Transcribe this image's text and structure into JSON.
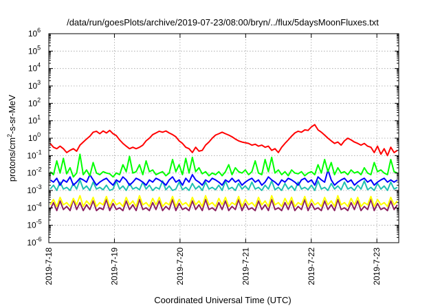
{
  "chart_data": {
    "type": "line",
    "title": "/data/run/goesPlots/archive/2019-07-23/08:00/bryn/../flux/5daysMoonFluxes.txt",
    "xlabel": "Coordinated Universal Time (UTC)",
    "ylabel_parts": [
      "protons/cm",
      "2",
      "-s-sr-MeV"
    ],
    "y_scale": "log",
    "ylim": [
      1e-06,
      1000000
    ],
    "y_ticks": [
      {
        "base": "10",
        "exp": "-6"
      },
      {
        "base": "10",
        "exp": "-5"
      },
      {
        "base": "10",
        "exp": "-4"
      },
      {
        "base": "10",
        "exp": "-3"
      },
      {
        "base": "10",
        "exp": "-2"
      },
      {
        "base": "10",
        "exp": "-1"
      },
      {
        "base": "10",
        "exp": "0"
      },
      {
        "base": "10",
        "exp": "1"
      },
      {
        "base": "10",
        "exp": "2"
      },
      {
        "base": "10",
        "exp": "3"
      },
      {
        "base": "10",
        "exp": "4"
      },
      {
        "base": "10",
        "exp": "5"
      },
      {
        "base": "10",
        "exp": "6"
      }
    ],
    "xlim": [
      "2019-07-18 00:00",
      "2019-07-23 08:00"
    ],
    "x_ticks": [
      "2019-7-18",
      "2019-7-19",
      "2019-7-20",
      "2019-7-21",
      "2019-7-22",
      "2019-7-23"
    ],
    "grid": true,
    "series": [
      {
        "color": "#ff0000",
        "values": [
          0.5,
          0.3,
          0.25,
          0.35,
          0.25,
          0.15,
          0.2,
          0.25,
          0.18,
          0.4,
          0.6,
          0.9,
          1.3,
          2.2,
          2.5,
          1.8,
          2.6,
          2.0,
          2.8,
          1.8,
          1.4,
          0.8,
          0.5,
          0.35,
          0.25,
          0.3,
          0.25,
          0.3,
          0.4,
          0.7,
          1.0,
          1.6,
          2.0,
          2.5,
          2.2,
          2.6,
          2.0,
          1.6,
          1.2,
          0.7,
          0.5,
          0.3,
          0.25,
          0.15,
          0.3,
          0.18,
          0.2,
          0.4,
          0.6,
          1.0,
          1.5,
          1.8,
          2.2,
          1.8,
          1.5,
          1.2,
          0.9,
          0.7,
          0.6,
          0.55,
          0.5,
          0.4,
          0.45,
          0.35,
          0.4,
          0.3,
          0.35,
          0.2,
          0.25,
          0.15,
          0.3,
          0.5,
          0.8,
          1.3,
          2.0,
          2.5,
          2.2,
          3.0,
          2.8,
          4.5,
          6.0,
          3.0,
          2.2,
          1.5,
          1.0,
          0.7,
          0.5,
          0.6,
          0.4,
          0.7,
          1.0,
          0.8,
          0.6,
          0.5,
          0.4,
          0.5,
          0.35,
          0.3,
          0.15,
          0.35,
          0.12,
          0.25,
          0.1,
          0.3,
          0.15,
          0.2
        ]
      },
      {
        "color": "#00ff00",
        "values": [
          0.012,
          0.008,
          0.05,
          0.01,
          0.07,
          0.009,
          0.02,
          0.006,
          0.01,
          0.12,
          0.008,
          0.015,
          0.007,
          0.04,
          0.01,
          0.008,
          0.012,
          0.01,
          0.009,
          0.006,
          0.01,
          0.008,
          0.03,
          0.012,
          0.09,
          0.01,
          0.012,
          0.03,
          0.008,
          0.05,
          0.012,
          0.015,
          0.008,
          0.01,
          0.012,
          0.007,
          0.01,
          0.06,
          0.012,
          0.03,
          0.008,
          0.07,
          0.01,
          0.08,
          0.012,
          0.02,
          0.009,
          0.012,
          0.007,
          0.01,
          0.008,
          0.012,
          0.007,
          0.012,
          0.03,
          0.008,
          0.02,
          0.012,
          0.01,
          0.015,
          0.008,
          0.012,
          0.05,
          0.01,
          0.008,
          0.06,
          0.012,
          0.08,
          0.01,
          0.015,
          0.008,
          0.012,
          0.007,
          0.015,
          0.01,
          0.009,
          0.012,
          0.007,
          0.01,
          0.012,
          0.008,
          0.03,
          0.01,
          0.06,
          0.012,
          0.04,
          0.008,
          0.02,
          0.01,
          0.012,
          0.008,
          0.015,
          0.01,
          0.012,
          0.008,
          0.02,
          0.01,
          0.008,
          0.04,
          0.012,
          0.015,
          0.01,
          0.008,
          0.06,
          0.012,
          0.01
        ]
      },
      {
        "color": "#0000ff",
        "values": [
          0.004,
          0.003,
          0.005,
          0.002,
          0.004,
          0.003,
          0.006,
          0.002,
          0.003,
          0.005,
          0.004,
          0.003,
          0.008,
          0.004,
          0.002,
          0.003,
          0.004,
          0.005,
          0.003,
          0.002,
          0.004,
          0.003,
          0.006,
          0.004,
          0.002,
          0.003,
          0.005,
          0.004,
          0.003,
          0.002,
          0.004,
          0.003,
          0.005,
          0.004,
          0.003,
          0.002,
          0.004,
          0.006,
          0.003,
          0.004,
          0.002,
          0.005,
          0.003,
          0.008,
          0.004,
          0.003,
          0.002,
          0.004,
          0.003,
          0.005,
          0.004,
          0.003,
          0.002,
          0.004,
          0.003,
          0.005,
          0.003,
          0.004,
          0.002,
          0.003,
          0.004,
          0.005,
          0.003,
          0.004,
          0.002,
          0.003,
          0.006,
          0.004,
          0.003,
          0.002,
          0.004,
          0.003,
          0.005,
          0.004,
          0.003,
          0.002,
          0.004,
          0.005,
          0.003,
          0.004,
          0.002,
          0.006,
          0.004,
          0.003,
          0.015,
          0.004,
          0.002,
          0.003,
          0.004,
          0.005,
          0.003,
          0.004,
          0.002,
          0.003,
          0.004,
          0.005,
          0.003,
          0.004,
          0.002,
          0.003,
          0.004,
          0.005,
          0.003,
          0.004,
          0.003,
          0.004
        ]
      },
      {
        "color": "#20c0b0",
        "values": [
          0.0012,
          0.002,
          0.001,
          0.003,
          0.0012,
          0.0015,
          0.001,
          0.0025,
          0.0012,
          0.004,
          0.0012,
          0.0018,
          0.001,
          0.003,
          0.0012,
          0.0015,
          0.0011,
          0.002,
          0.001,
          0.0012,
          0.0035,
          0.0012,
          0.0018,
          0.001,
          0.0025,
          0.0012,
          0.0015,
          0.0011,
          0.003,
          0.0012,
          0.002,
          0.001,
          0.0015,
          0.0012,
          0.0035,
          0.0011,
          0.0018,
          0.001,
          0.0012,
          0.003,
          0.0011,
          0.0015,
          0.001,
          0.0025,
          0.0012,
          0.0018,
          0.001,
          0.003,
          0.0012,
          0.0015,
          0.0011,
          0.002,
          0.001,
          0.0035,
          0.0012,
          0.0015,
          0.001,
          0.0025,
          0.0012,
          0.0018,
          0.0011,
          0.003,
          0.0012,
          0.0015,
          0.001,
          0.002,
          0.0012,
          0.0035,
          0.0011,
          0.0015,
          0.001,
          0.0025,
          0.0012,
          0.0018,
          0.001,
          0.003,
          0.0012,
          0.0015,
          0.0011,
          0.002,
          0.001,
          0.0035,
          0.0012,
          0.0015,
          0.001,
          0.0025,
          0.0012,
          0.0018,
          0.0011,
          0.003,
          0.0012,
          0.0015,
          0.001,
          0.002,
          0.0012,
          0.0035,
          0.0011,
          0.0015,
          0.001,
          0.0025,
          0.0012,
          0.0018,
          0.001,
          0.003,
          0.0012,
          0.0015
        ]
      },
      {
        "color": "#ffff00",
        "values": [
          0.00015,
          0.0003,
          0.00012,
          0.0004,
          0.00015,
          0.0002,
          0.00012,
          0.00035,
          0.00015,
          0.0005,
          0.00012,
          0.00025,
          0.00015,
          0.0004,
          0.00012,
          0.0002,
          0.00015,
          0.00045,
          0.00012,
          0.0003,
          0.00015,
          0.0002,
          0.00012,
          0.0004,
          0.00015,
          0.00025,
          0.00012,
          0.0005,
          0.00015,
          0.0002,
          0.00012,
          0.00035,
          0.00015,
          0.0004,
          0.00012,
          0.0002,
          0.00015,
          0.00045,
          0.00012,
          0.0003,
          0.00015,
          0.0002,
          0.00012,
          0.0004,
          0.00015,
          0.00025,
          0.00012,
          0.0005,
          0.00015,
          0.0002,
          0.00012,
          0.00035,
          0.00015,
          0.0004,
          0.00012,
          0.0002,
          0.00015,
          0.00045,
          0.00012,
          0.0003,
          0.00015,
          0.0002,
          0.00012,
          0.0004,
          0.00015,
          0.00025,
          0.00012,
          0.0005,
          0.00015,
          0.0002,
          0.00012,
          0.00035,
          0.00015,
          0.0004,
          0.00012,
          0.0002,
          0.00015,
          0.00045,
          0.00012,
          0.0003,
          0.00015,
          0.0002,
          0.00012,
          0.0004,
          0.00015,
          0.00025,
          0.00012,
          0.0005,
          0.00015,
          0.0002,
          0.00012,
          0.00035,
          0.00015,
          0.0004,
          0.00012,
          0.0002,
          0.00015,
          0.00045,
          0.00012,
          0.0003,
          0.00015,
          0.0002,
          0.00012,
          0.0004,
          0.00015,
          0.00025
        ]
      },
      {
        "color": "#8b2060",
        "values": [
          8e-05,
          0.0002,
          7e-05,
          0.00025,
          8e-05,
          0.00012,
          7e-05,
          0.0003,
          8e-05,
          0.0002,
          7e-05,
          0.00015,
          8e-05,
          0.00025,
          7e-05,
          0.0001,
          8e-05,
          0.0003,
          7e-05,
          0.00018,
          8e-05,
          0.0001,
          7e-05,
          0.00025,
          8e-05,
          0.00015,
          7e-05,
          0.0003,
          8e-05,
          0.0001,
          7e-05,
          0.0002,
          8e-05,
          0.00025,
          7e-05,
          0.00012,
          8e-05,
          0.0003,
          7e-05,
          0.00018,
          8e-05,
          0.0001,
          7e-05,
          0.00025,
          8e-05,
          0.00015,
          7e-05,
          0.0003,
          8e-05,
          0.0001,
          7e-05,
          0.0002,
          8e-05,
          0.00025,
          7e-05,
          0.00012,
          8e-05,
          0.0003,
          7e-05,
          0.00018,
          8e-05,
          0.0001,
          7e-05,
          0.00025,
          8e-05,
          0.00015,
          7e-05,
          0.0003,
          8e-05,
          0.0001,
          7e-05,
          0.0002,
          8e-05,
          0.00025,
          7e-05,
          0.00012,
          8e-05,
          0.0003,
          7e-05,
          0.00018,
          8e-05,
          0.0001,
          7e-05,
          0.00025,
          8e-05,
          0.00015,
          7e-05,
          0.0003,
          8e-05,
          0.0001,
          7e-05,
          0.0002,
          8e-05,
          0.00025,
          7e-05,
          0.00012,
          8e-05,
          0.0003,
          7e-05,
          0.00018,
          8e-05,
          0.0001,
          7e-05,
          0.00025,
          8e-05,
          0.00015
        ]
      }
    ]
  }
}
